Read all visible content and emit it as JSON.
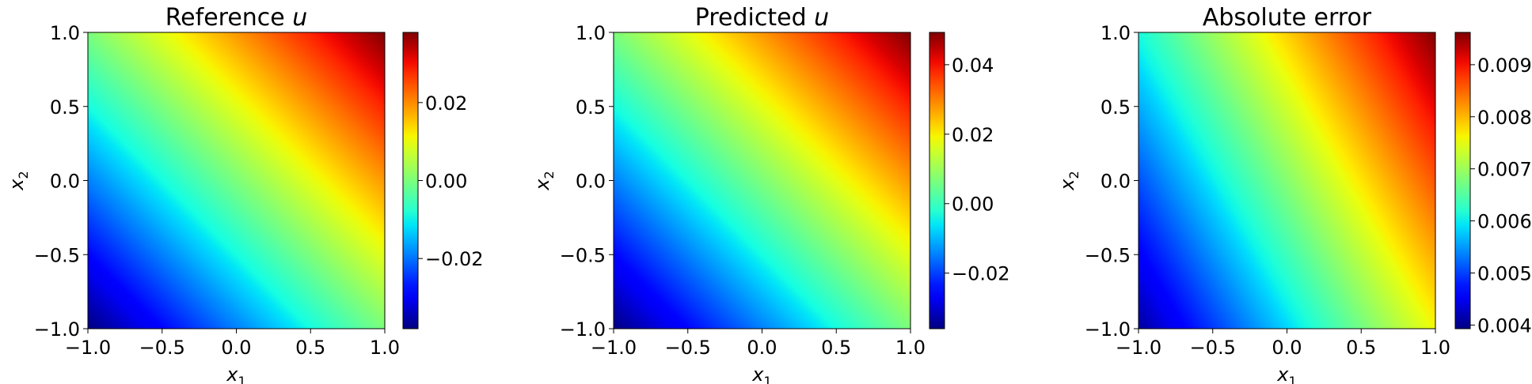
{
  "chart_data": [
    {
      "type": "heatmap",
      "title": "Reference u",
      "title_plain": "Reference ",
      "title_var": "u",
      "xlabel": "x1",
      "ylabel": "x2",
      "xlabel_var": "x",
      "xlabel_sub": "1",
      "ylabel_var": "x",
      "ylabel_sub": "2",
      "xlim": [
        -1.0,
        1.0
      ],
      "ylim": [
        -1.0,
        1.0
      ],
      "xticks": [
        -1.0,
        -0.5,
        0.0,
        0.5,
        1.0
      ],
      "yticks": [
        -1.0,
        -0.5,
        0.0,
        0.5,
        1.0
      ],
      "xtick_labels": [
        "−1.0",
        "−0.5",
        "0.0",
        "0.5",
        "1.0"
      ],
      "ytick_labels": [
        "−1.0",
        "−0.5",
        "0.0",
        "0.5",
        "1.0"
      ],
      "colormap": "jet",
      "grid": false,
      "field": {
        "form": "linear",
        "a": 0.019,
        "b": 0.019,
        "c": 0.0
      },
      "colorbar": {
        "vmin": -0.038,
        "vmax": 0.038,
        "ticks": [
          -0.02,
          0.0,
          0.02
        ],
        "tick_labels": [
          "−0.02",
          "0.00",
          "0.02"
        ]
      }
    },
    {
      "type": "heatmap",
      "title": "Predicted u",
      "title_plain": "Predicted ",
      "title_var": "u",
      "xlabel": "x1",
      "ylabel": "x2",
      "xlabel_var": "x",
      "xlabel_sub": "1",
      "ylabel_var": "x",
      "ylabel_sub": "2",
      "xlim": [
        -1.0,
        1.0
      ],
      "ylim": [
        -1.0,
        1.0
      ],
      "xticks": [
        -1.0,
        -0.5,
        0.0,
        0.5,
        1.0
      ],
      "yticks": [
        -1.0,
        -0.5,
        0.0,
        0.5,
        1.0
      ],
      "xtick_labels": [
        "−1.0",
        "−0.5",
        "0.0",
        "0.5",
        "1.0"
      ],
      "ytick_labels": [
        "−1.0",
        "−0.5",
        "0.0",
        "0.5",
        "1.0"
      ],
      "colormap": "jet",
      "grid": false,
      "field": {
        "form": "linear",
        "a": 0.0213,
        "b": 0.0213,
        "c": 0.0067
      },
      "colorbar": {
        "vmin": -0.036,
        "vmax": 0.0493,
        "ticks": [
          -0.02,
          0.0,
          0.02,
          0.04
        ],
        "tick_labels": [
          "−0.02",
          "0.00",
          "0.02",
          "0.04"
        ]
      }
    },
    {
      "type": "heatmap",
      "title": "Absolute error",
      "title_plain": "Absolute error",
      "title_var": "",
      "xlabel": "x1",
      "ylabel": "x2",
      "xlabel_var": "x",
      "xlabel_sub": "1",
      "ylabel_var": "x",
      "ylabel_sub": "2",
      "xlim": [
        -1.0,
        1.0
      ],
      "ylim": [
        -1.0,
        1.0
      ],
      "xticks": [
        -1.0,
        -0.5,
        0.0,
        0.5,
        1.0
      ],
      "yticks": [
        -1.0,
        -0.5,
        0.0,
        0.5,
        1.0
      ],
      "xtick_labels": [
        "−1.0",
        "−0.5",
        "0.0",
        "0.5",
        "1.0"
      ],
      "ytick_labels": [
        "−1.0",
        "−0.5",
        "0.0",
        "0.5",
        "1.0"
      ],
      "colormap": "jet",
      "grid": false,
      "field": {
        "form": "linear",
        "a": 0.00176,
        "b": 0.00101,
        "c": 0.006845
      },
      "colorbar": {
        "vmin": 0.00393,
        "vmax": 0.00962,
        "ticks": [
          0.004,
          0.005,
          0.006,
          0.007,
          0.008,
          0.009
        ],
        "tick_labels": [
          "0.004",
          "0.005",
          "0.006",
          "0.007",
          "0.008",
          "0.009"
        ]
      }
    }
  ]
}
